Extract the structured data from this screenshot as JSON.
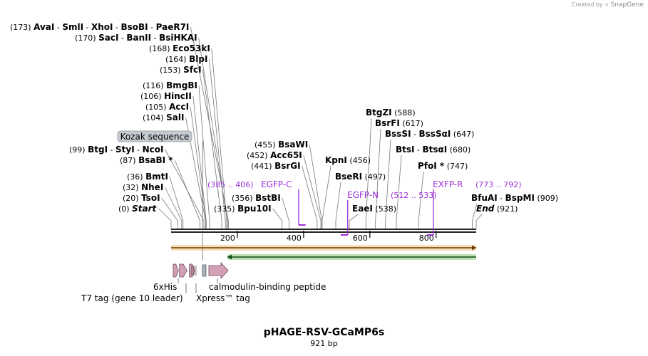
{
  "watermark": {
    "created_by": "Created by",
    "brand": "SnapGene"
  },
  "plasmid": {
    "name": "pHAGE-RSV-GCaMP6s",
    "length_label": "921 bp"
  },
  "axis": {
    "min": 0,
    "max": 921,
    "ticks": [
      200,
      400,
      600,
      800
    ]
  },
  "colors": {
    "backbone": "#222222",
    "feature": "#d4a0b6",
    "primer_purple": "#9b30d9",
    "orange_arrow": "#e89a2c",
    "green_arrow": "#3ea830",
    "kozak_fill": "#c6ccd3"
  },
  "cut_sites": [
    {
      "num": "(173)",
      "names": [
        "AvaI",
        "SmlI",
        "XhoI",
        "BsoBI",
        "PaeR7I"
      ],
      "pos": 173
    },
    {
      "num": "(170)",
      "names": [
        "SacI",
        "BanII",
        "BsiHKAI"
      ],
      "pos": 170
    },
    {
      "num": "(168)",
      "names": [
        "Eco53kI"
      ],
      "pos": 168
    },
    {
      "num": "(164)",
      "names": [
        "BlpI"
      ],
      "pos": 164
    },
    {
      "num": "(153)",
      "names": [
        "SfcI"
      ],
      "pos": 153
    },
    {
      "num": "(116)",
      "names": [
        "BmgBI"
      ],
      "pos": 116
    },
    {
      "num": "(106)",
      "names": [
        "HincII"
      ],
      "pos": 106
    },
    {
      "num": "(105)",
      "names": [
        "AccI"
      ],
      "pos": 105
    },
    {
      "num": "(104)",
      "names": [
        "SalI"
      ],
      "pos": 104
    },
    {
      "num": "(99)",
      "names": [
        "BtgI",
        "StyI",
        "NcoI"
      ],
      "pos": 99
    },
    {
      "num": "(87)",
      "names": [
        "BsaBI *"
      ],
      "pos": 87
    },
    {
      "num": "(36)",
      "names": [
        "BmtI"
      ],
      "pos": 36
    },
    {
      "num": "(32)",
      "names": [
        "NheI"
      ],
      "pos": 32
    },
    {
      "num": "(20)",
      "names": [
        "TsoI"
      ],
      "pos": 20
    },
    {
      "num": "(0)",
      "names": [
        "Start"
      ],
      "pos": 0,
      "italic": true
    },
    {
      "num": "(335)",
      "names": [
        "Bpu10I"
      ],
      "pos": 335
    },
    {
      "num": "(356)",
      "names": [
        "BstBI"
      ],
      "pos": 356
    },
    {
      "num": "(441)",
      "names": [
        "BsrGI"
      ],
      "pos": 441
    },
    {
      "num": "(452)",
      "names": [
        "Acc65I"
      ],
      "pos": 452
    },
    {
      "num": "(455)",
      "names": [
        "BsaWI"
      ],
      "pos": 455
    },
    {
      "num": "(456)",
      "names": [
        "KpnI"
      ],
      "pos": 456
    },
    {
      "num": "(497)",
      "names": [
        "BseRI"
      ],
      "pos": 497
    },
    {
      "num": "(538)",
      "names": [
        "EaeI"
      ],
      "pos": 538
    },
    {
      "num": "(588)",
      "names": [
        "BtgZI"
      ],
      "pos": 588
    },
    {
      "num": "(617)",
      "names": [
        "BsrFI"
      ],
      "pos": 617
    },
    {
      "num": "(647)",
      "names": [
        "BssSI",
        "BssSαI"
      ],
      "pos": 647
    },
    {
      "num": "(680)",
      "names": [
        "BtsI",
        "BtsαI"
      ],
      "pos": 680
    },
    {
      "num": "(747)",
      "names": [
        "PfoI *"
      ],
      "pos": 747
    },
    {
      "num": "(909)",
      "names": [
        "BfuAI",
        "BspMI"
      ],
      "pos": 909
    },
    {
      "num": "(921)",
      "names": [
        "End"
      ],
      "pos": 921,
      "italic": true
    }
  ],
  "primers": [
    {
      "name": "EGFP-C",
      "range": "(385 .. 406)",
      "start": 385,
      "end": 406
    },
    {
      "name": "EGFP-N",
      "range": "(512 .. 533)",
      "start": 512,
      "end": 533
    },
    {
      "name": "EXFP-R",
      "range": "(773 .. 792)",
      "start": 773,
      "end": 792
    }
  ],
  "features": [
    {
      "name": "Kozak sequence",
      "start": 95,
      "end": 104
    },
    {
      "name": "6xHis",
      "start": 0,
      "end": 18
    },
    {
      "name": "T7 tag (gene 10 leader)",
      "start": 21,
      "end": 50
    },
    {
      "name": "Xpress™ tag",
      "start": 53,
      "end": 74
    },
    {
      "name": "calmodulin-binding peptide",
      "start": 108,
      "end": 170
    }
  ],
  "orfs": [
    {
      "name": "forward-orf",
      "start": 0,
      "end": 921,
      "direction": "forward"
    },
    {
      "name": "reverse-orf",
      "start": 170,
      "end": 921,
      "direction": "reverse"
    }
  ]
}
